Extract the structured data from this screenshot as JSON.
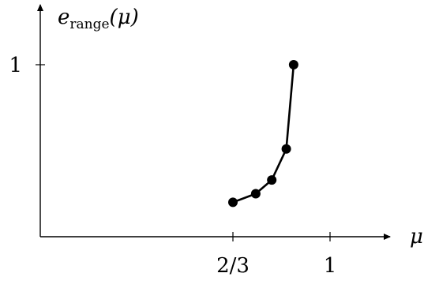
{
  "chart_data": {
    "type": "line",
    "ylabel": "e_range(μ)",
    "ylabel_parts": {
      "base": "e",
      "subscript": "range",
      "arg": "(μ)"
    },
    "xlabel": "μ",
    "x_ticks": [
      {
        "value": 0.6667,
        "label": "2/3"
      },
      {
        "value": 1.0,
        "label": "1"
      }
    ],
    "y_ticks": [
      {
        "value": 1.0,
        "label": "1"
      }
    ],
    "xlim": [
      0.0,
      1.2
    ],
    "ylim": [
      0.0,
      1.3
    ],
    "axis_arrows": true,
    "grid": false,
    "series": [
      {
        "x": [
          0.6667,
          0.745,
          0.8,
          0.85,
          0.875
        ],
        "y": [
          0.2,
          0.25,
          0.33,
          0.51,
          1.0
        ]
      }
    ]
  }
}
